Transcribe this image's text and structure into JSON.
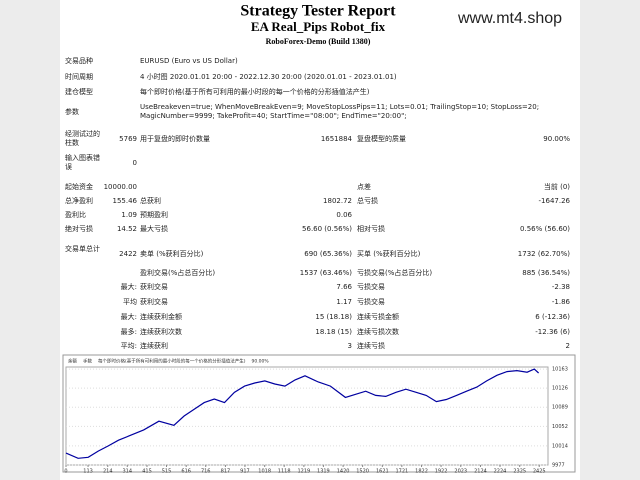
{
  "header": {
    "title": "Strategy Tester Report",
    "subtitle": "EA Real_Pips Robot_fix",
    "server": "RoboForex-Demo (Build 1380)",
    "watermark": "www.mt4.shop"
  },
  "table": {
    "rows": [
      [
        "交易品种",
        null,
        "EURUSD (Euro vs US Dollar)",
        null,
        null,
        null
      ],
      [
        "时间周期",
        null,
        "4 小时图 2020.01.01 20:00 - 2022.12.30 20:00 (2020.01.01 - 2023.01.01)",
        null,
        null,
        null
      ],
      [
        "建仓模型",
        null,
        "每个即时价格(基于所有可利用的最小时段的每一个价格的分形插值法产生)",
        null,
        null,
        null
      ],
      [
        "参数",
        null,
        "UseBreakeven=true; WhenMoveBreakEven=9; MoveStopLossPips=11; Lots=0.01; TrailingStop=10; StopLoss=20; MagicNumber=9999; TakeProfit=40; StartTime=\"08:00\"; EndTime=\"20:00\";",
        null,
        null,
        null
      ],
      [
        "经测试过的柱数",
        "5769",
        "用于复盘的即时价数量",
        "1651884",
        "复盘模型的质量",
        "90.00%"
      ],
      [
        "输入图表错误",
        "0",
        null,
        null,
        null,
        null
      ],
      [
        "起始资金",
        "10000.00",
        null,
        null,
        "点差",
        "当前 (0)"
      ],
      [
        "总净盈利",
        "155.46",
        "总获利",
        "1802.72",
        "总亏损",
        "-1647.26"
      ],
      [
        "盈利比",
        "1.09",
        "预期盈利",
        "0.06",
        null,
        null
      ],
      [
        "绝对亏损",
        "14.52",
        "最大亏损",
        "56.60 (0.56%)",
        "相对亏损",
        "0.56% (56.60)"
      ],
      [
        "交易单总计",
        "2422",
        "卖单 (%获利百分比)",
        "690 (65.36%)",
        "买单 (%获利百分比)",
        "1732 (62.70%)"
      ],
      [
        null,
        null,
        "盈利交易(%占总百分比)",
        "1537 (63.46%)",
        "亏损交易(%占总百分比)",
        "885 (36.54%)"
      ],
      [
        null,
        "最大:",
        "获利交易",
        "7.66",
        "亏损交易",
        "-2.38"
      ],
      [
        null,
        "平均",
        "获利交易",
        "1.17",
        "亏损交易",
        "-1.86"
      ],
      [
        null,
        "最大:",
        "连续获利金额",
        "15 (18.18)",
        "连续亏损金额",
        "6 (-12.36)"
      ],
      [
        null,
        "最多:",
        "连续获利次数",
        "18.18 (15)",
        "连续亏损次数",
        "-12.36 (6)"
      ],
      [
        null,
        "平均:",
        "连续获利",
        "3",
        "连续亏损",
        "2"
      ]
    ]
  },
  "chart": {
    "type": "line",
    "legend": [
      "余额",
      "手数",
      "每个即时价格(基于所有可利用的最小时段的每一个价格的分形插值法产生)",
      "90.00%"
    ],
    "color": "#0000a0",
    "x": [
      0,
      62,
      114,
      165,
      217,
      269,
      321,
      398,
      476,
      553,
      605,
      657,
      708,
      760,
      812,
      863,
      915,
      967,
      1019,
      1070,
      1122,
      1174,
      1225,
      1293,
      1355,
      1432,
      1484,
      1536,
      1587,
      1639,
      1691,
      1742,
      1794,
      1846,
      1898,
      1949,
      2001,
      2053,
      2105,
      2156,
      2208,
      2260,
      2311,
      2363,
      2400,
      2422
    ],
    "values": [
      10000,
      9990,
      9992,
      10004,
      10014,
      10025,
      10033,
      10045,
      10062,
      10054,
      10072,
      10085,
      10098,
      10105,
      10098,
      10118,
      10130,
      10136,
      10140,
      10134,
      10130,
      10142,
      10150,
      10138,
      10130,
      10108,
      10114,
      10120,
      10112,
      10110,
      10118,
      10124,
      10118,
      10112,
      10100,
      10104,
      10112,
      10120,
      10128,
      10140,
      10151,
      10158,
      10160,
      10157,
      10163,
      10155.46
    ],
    "xlim": [
      0,
      2470
    ],
    "ylim": [
      9977,
      10167
    ],
    "xticks": [
      0,
      113,
      214,
      314,
      415,
      515,
      616,
      716,
      817,
      917,
      1018,
      1118,
      1219,
      1319,
      1420,
      1520,
      1621,
      1721,
      1822,
      1922,
      2023,
      2124,
      2224,
      2325,
      2425
    ],
    "yticks": [
      9977,
      10014,
      10052,
      10089,
      10126,
      10163
    ]
  }
}
